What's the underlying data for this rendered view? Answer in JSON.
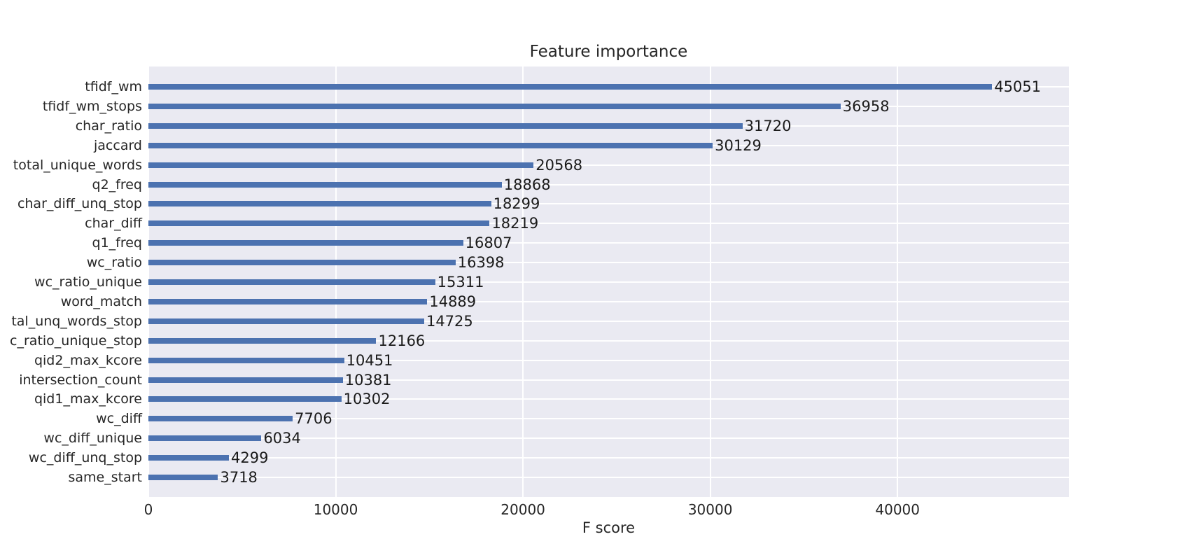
{
  "chart_data": {
    "type": "bar",
    "orientation": "horizontal",
    "title": "Feature importance",
    "xlabel": "F score",
    "categories": [
      "tfidf_wm",
      "tfidf_wm_stops",
      "char_ratio",
      "jaccard",
      "total_unique_words",
      "q2_freq",
      "char_diff_unq_stop",
      "char_diff",
      "q1_freq",
      "wc_ratio",
      "wc_ratio_unique",
      "word_match",
      "tal_unq_words_stop",
      "c_ratio_unique_stop",
      "qid2_max_kcore",
      "intersection_count",
      "qid1_max_kcore",
      "wc_diff",
      "wc_diff_unique",
      "wc_diff_unq_stop",
      "same_start"
    ],
    "values": [
      45051,
      36958,
      31720,
      30129,
      20568,
      18868,
      18299,
      18219,
      16807,
      16398,
      15311,
      14889,
      14725,
      12166,
      10451,
      10381,
      10302,
      7706,
      6034,
      4299,
      3718
    ],
    "value_labels": [
      "45051",
      "36958",
      "31720",
      "30129",
      "20568",
      "18868",
      "18299",
      "18219",
      "16807",
      "16398",
      "15311",
      "14889",
      "14725",
      "12166",
      "10451",
      "10381",
      "10302",
      "7706",
      "6034",
      "4299",
      "3718"
    ],
    "xticks": [
      0,
      10000,
      20000,
      30000,
      40000
    ],
    "xtick_labels": [
      "0",
      "10000",
      "20000",
      "30000",
      "40000"
    ],
    "xlim": [
      0,
      49150
    ],
    "grid": true,
    "legend": null,
    "colors": {
      "bar": "#4c72b0",
      "plot_background": "#eaeaf2",
      "gridline": "#ffffff",
      "axis_text": "#262626",
      "title_text": "#262626",
      "value_text": "#1a1a1a"
    }
  }
}
